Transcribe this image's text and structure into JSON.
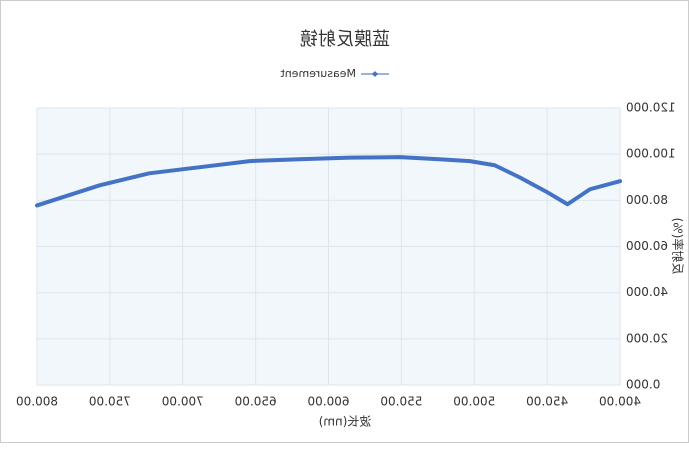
{
  "chart_data": {
    "type": "line",
    "title": "蓝膜反射镜",
    "x_label": "波长(nm)",
    "y_label": "反射率(%)",
    "x": [
      400,
      420.6,
      436,
      451,
      469,
      486,
      503,
      524,
      551,
      585,
      620,
      654,
      689,
      723,
      757,
      800
    ],
    "series": [
      {
        "name": "Measurement",
        "color": "#4472c4",
        "values": [
          88.3,
          84.8,
          78.3,
          83.9,
          90,
          95.2,
          97,
          97.8,
          98.7,
          98.5,
          97.8,
          97,
          94.3,
          91.7,
          86.5,
          77.8
        ]
      }
    ],
    "xlim": [
      400,
      800
    ],
    "xticks": [
      {
        "value": 400,
        "label": "400.00"
      },
      {
        "value": 450,
        "label": "450.00"
      },
      {
        "value": 500,
        "label": "500.00"
      },
      {
        "value": 550,
        "label": "550.00"
      },
      {
        "value": 600,
        "label": "600.00"
      },
      {
        "value": 650,
        "label": "650.00"
      },
      {
        "value": 700,
        "label": "700.00"
      },
      {
        "value": 750,
        "label": "750.00"
      },
      {
        "value": 800,
        "label": "800.00"
      }
    ],
    "ylim": [
      0,
      120
    ],
    "yticks": [
      {
        "value": 0,
        "label": "0.000"
      },
      {
        "value": 20,
        "label": "20.000"
      },
      {
        "value": 40,
        "label": "40.000"
      },
      {
        "value": 60,
        "label": "60.000"
      },
      {
        "value": 80,
        "label": "80.000"
      },
      {
        "value": 100,
        "label": "100.000"
      },
      {
        "value": 120,
        "label": "120.000"
      }
    ],
    "grid": true,
    "mirrored": true
  }
}
